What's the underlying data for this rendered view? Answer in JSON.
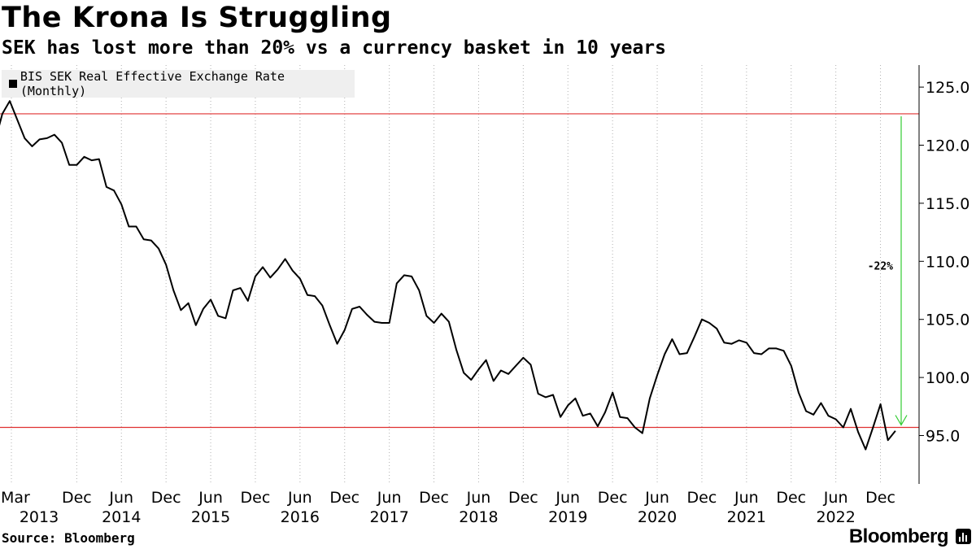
{
  "title": "The Krona Is Struggling",
  "subtitle": "SEK has lost more than 20% vs a currency basket in 10 years",
  "source": "Source: Bloomberg",
  "brand": "Bloomberg",
  "brand_icon": "bar-chart-icon",
  "colors": {
    "line": "#000000",
    "reference": "#e03030",
    "arrow": "#33cc33",
    "grid": "#b0b0b0"
  },
  "chart_data": {
    "type": "line",
    "title": "The Krona Is Struggling",
    "subtitle": "SEK has lost more than 20% vs a currency basket in 10 years",
    "xlabel": "",
    "ylabel": "",
    "x_range": [
      "2013-02",
      "2023-02"
    ],
    "ylim": [
      91.5,
      126.5
    ],
    "y_ticks": [
      95.0,
      100.0,
      105.0,
      110.0,
      115.0,
      120.0,
      125.0
    ],
    "y_tick_labels": [
      "95.0",
      "100.0",
      "105.0",
      "110.0",
      "115.0",
      "120.0",
      "125.0"
    ],
    "y_axis_side": "right",
    "x_ticks": [
      {
        "date": "2013-03",
        "label": "Mar",
        "year": "2013"
      },
      {
        "date": "2013-12",
        "label": "Dec",
        "year": ""
      },
      {
        "date": "2014-06",
        "label": "Jun",
        "year": "2014"
      },
      {
        "date": "2014-12",
        "label": "Dec",
        "year": ""
      },
      {
        "date": "2015-06",
        "label": "Jun",
        "year": "2015"
      },
      {
        "date": "2015-12",
        "label": "Dec",
        "year": ""
      },
      {
        "date": "2016-06",
        "label": "Jun",
        "year": "2016"
      },
      {
        "date": "2016-12",
        "label": "Dec",
        "year": ""
      },
      {
        "date": "2017-06",
        "label": "Jun",
        "year": "2017"
      },
      {
        "date": "2017-12",
        "label": "Dec",
        "year": ""
      },
      {
        "date": "2018-06",
        "label": "Jun",
        "year": "2018"
      },
      {
        "date": "2018-12",
        "label": "Dec",
        "year": ""
      },
      {
        "date": "2019-06",
        "label": "Jun",
        "year": "2019"
      },
      {
        "date": "2019-12",
        "label": "Dec",
        "year": ""
      },
      {
        "date": "2020-06",
        "label": "Jun",
        "year": "2020"
      },
      {
        "date": "2020-12",
        "label": "Dec",
        "year": ""
      },
      {
        "date": "2021-06",
        "label": "Jun",
        "year": "2021"
      },
      {
        "date": "2021-12",
        "label": "Dec",
        "year": ""
      },
      {
        "date": "2022-06",
        "label": "Jun",
        "year": "2022"
      },
      {
        "date": "2022-12",
        "label": "Dec",
        "year": ""
      }
    ],
    "grid": "vertical dotted",
    "legend_position": "top-left",
    "series": [
      {
        "name": "BIS SEK Real Effective Exchange Rate (Monthly)",
        "x": [
          "2013-01",
          "2013-02",
          "2013-03",
          "2013-04",
          "2013-05",
          "2013-06",
          "2013-07",
          "2013-08",
          "2013-09",
          "2013-10",
          "2013-11",
          "2013-12",
          "2014-01",
          "2014-02",
          "2014-03",
          "2014-04",
          "2014-05",
          "2014-06",
          "2014-07",
          "2014-08",
          "2014-09",
          "2014-10",
          "2014-11",
          "2014-12",
          "2015-01",
          "2015-02",
          "2015-03",
          "2015-04",
          "2015-05",
          "2015-06",
          "2015-07",
          "2015-08",
          "2015-09",
          "2015-10",
          "2015-11",
          "2015-12",
          "2016-01",
          "2016-02",
          "2016-03",
          "2016-04",
          "2016-05",
          "2016-06",
          "2016-07",
          "2016-08",
          "2016-09",
          "2016-10",
          "2016-11",
          "2016-12",
          "2017-01",
          "2017-02",
          "2017-03",
          "2017-04",
          "2017-05",
          "2017-06",
          "2017-07",
          "2017-08",
          "2017-09",
          "2017-10",
          "2017-11",
          "2017-12",
          "2018-01",
          "2018-02",
          "2018-03",
          "2018-04",
          "2018-05",
          "2018-06",
          "2018-07",
          "2018-08",
          "2018-09",
          "2018-10",
          "2018-11",
          "2018-12",
          "2019-01",
          "2019-02",
          "2019-03",
          "2019-04",
          "2019-05",
          "2019-06",
          "2019-07",
          "2019-08",
          "2019-09",
          "2019-10",
          "2019-11",
          "2019-12",
          "2020-01",
          "2020-02",
          "2020-03",
          "2020-04",
          "2020-05",
          "2020-06",
          "2020-07",
          "2020-08",
          "2020-09",
          "2020-10",
          "2020-11",
          "2020-12",
          "2021-01",
          "2021-02",
          "2021-03",
          "2021-04",
          "2021-05",
          "2021-06",
          "2021-07",
          "2021-08",
          "2021-09",
          "2021-10",
          "2021-11",
          "2021-12",
          "2022-01",
          "2022-02",
          "2022-03",
          "2022-04",
          "2022-05",
          "2022-06",
          "2022-07",
          "2022-08",
          "2022-09",
          "2022-10",
          "2022-11",
          "2022-12",
          "2023-01",
          "2023-02"
        ],
        "values": [
          120.3,
          122.7,
          123.8,
          122.2,
          120.6,
          119.9,
          120.5,
          120.6,
          120.9,
          120.2,
          118.3,
          118.3,
          119.0,
          118.7,
          118.8,
          116.4,
          116.1,
          114.9,
          113.0,
          113.0,
          111.9,
          111.8,
          111.1,
          109.7,
          107.5,
          105.8,
          106.4,
          104.5,
          105.9,
          106.7,
          105.3,
          105.1,
          107.5,
          107.7,
          106.6,
          108.7,
          109.5,
          108.6,
          109.3,
          110.2,
          109.2,
          108.5,
          107.1,
          107.0,
          106.2,
          104.5,
          102.9,
          104.1,
          105.9,
          106.1,
          105.4,
          104.8,
          104.7,
          104.7,
          108.1,
          108.8,
          108.7,
          107.5,
          105.3,
          104.7,
          105.5,
          104.8,
          102.4,
          100.4,
          99.8,
          100.7,
          101.5,
          99.7,
          100.6,
          100.3,
          101.0,
          101.7,
          101.1,
          98.6,
          98.3,
          98.5,
          96.6,
          97.6,
          98.2,
          96.7,
          96.9,
          95.8,
          97.0,
          98.7,
          96.6,
          96.5,
          95.7,
          95.2,
          98.2,
          100.2,
          102.0,
          103.3,
          102.0,
          102.1,
          103.5,
          105.0,
          104.7,
          104.2,
          103.0,
          102.9,
          103.2,
          103.0,
          102.1,
          102.0,
          102.5,
          102.5,
          102.3,
          101.0,
          98.7,
          97.1,
          96.8,
          97.8,
          96.7,
          96.4,
          95.7,
          97.3,
          95.3,
          93.8,
          95.7,
          97.7,
          94.6,
          95.4
        ]
      }
    ],
    "reference_lines": [
      {
        "value": 122.7,
        "color": "#e03030"
      },
      {
        "value": 95.7,
        "color": "#e03030"
      }
    ],
    "annotations": [
      {
        "text": "-22%",
        "arrow_from": 122.7,
        "arrow_to": 95.7,
        "arrow_date": "2023-03",
        "color": "#33cc33"
      }
    ]
  }
}
